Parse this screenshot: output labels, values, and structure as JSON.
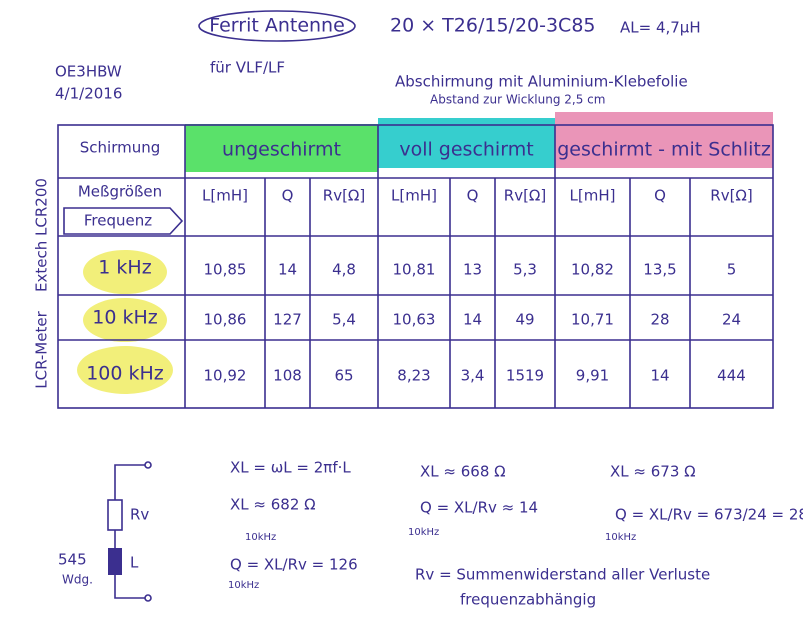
{
  "header": {
    "title": "Ferrit Antenne",
    "core": "20 × T26/15/20-3C85",
    "al": "AL= 4,7µH",
    "callsign": "OE3HBW",
    "date": "4/1/2016",
    "band": "für VLF/LF",
    "note_1": "Abschirmung mit Aluminium-Klebefolie",
    "note_2": "Abstand zur Wicklung 2,5 cm"
  },
  "side_labels": [
    "Extech LCR200",
    "LCR-Meter"
  ],
  "table": {
    "corner": "Schirmung",
    "groups": [
      "ungeschirmt",
      "voll geschirmt",
      "geschirmt - mit Schlitz"
    ],
    "quantities_label": "Meßgrößen",
    "frequency_label": "Frequenz",
    "columns": [
      "L[mH]",
      "Q",
      "Rv[Ω]",
      "L[mH]",
      "Q",
      "Rv[Ω]",
      "L[mH]",
      "Q",
      "Rv[Ω]"
    ],
    "rows": [
      {
        "frequency": "1 kHz",
        "cells": [
          "10,85",
          "14",
          "4,8",
          "10,81",
          "13",
          "5,3",
          "10,82",
          "13,5",
          "5"
        ]
      },
      {
        "frequency": "10 kHz",
        "cells": [
          "10,86",
          "127",
          "5,4",
          "10,63",
          "14",
          "49",
          "10,71",
          "28",
          "24"
        ]
      },
      {
        "frequency": "100 kHz",
        "cells": [
          "10,92",
          "108",
          "65",
          "8,23",
          "3,4",
          "1519",
          "9,91",
          "14",
          "444"
        ]
      }
    ]
  },
  "formulas": {
    "xl_def": "XL = ωL = 2πf·L",
    "left_xl": "XL ≈ 682 Ω",
    "left_freq_1": "10kHz",
    "left_q": "Q = XL/Rv = 126",
    "left_freq_2": "10kHz",
    "mid_xl": "XL ≈ 668 Ω",
    "mid_q": "Q = XL/Rv ≈ 14",
    "mid_freq": "10kHz",
    "right_xl": "XL ≈ 673 Ω",
    "right_q": "Q = XL/Rv = 673/24 = 28",
    "right_freq": "10kHz",
    "rv_def": "Rv = Summenwiderstand aller Verluste",
    "rv_note": "frequenzabhängig"
  },
  "circuit": {
    "rv": "Rv",
    "l": "L",
    "turns": "545",
    "turns_unit": "Wdg."
  }
}
